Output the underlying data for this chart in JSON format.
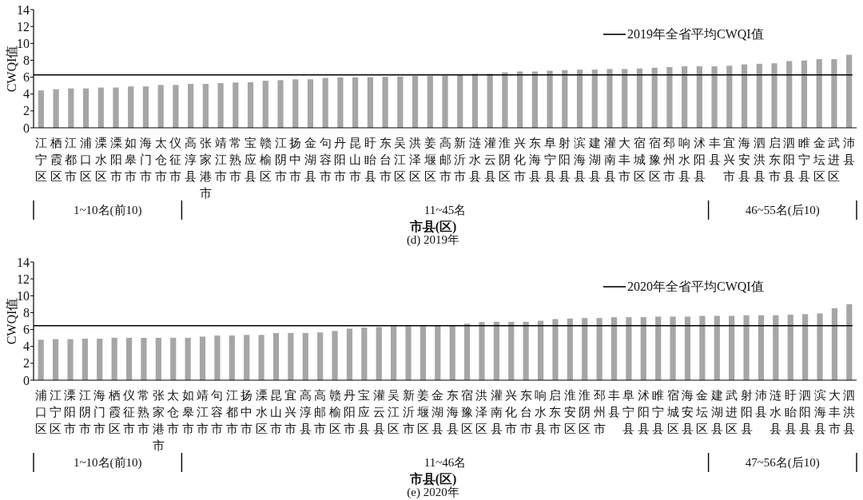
{
  "chart_data": [
    {
      "type": "bar",
      "ylabel": "CWQI值",
      "xlabel": "市县(区)",
      "color": "#a6a6a6",
      "ylim": [
        0,
        14
      ],
      "yticks": [
        0,
        2,
        4,
        6,
        8,
        10,
        12,
        14
      ],
      "legend": "top right",
      "categories": [
        "江宁区",
        "栖霞区",
        "江都市",
        "浦口区",
        "溧水区",
        "溧阳市",
        "如皋市",
        "海门市",
        "太仓市",
        "仪征市",
        "高淳县",
        "张家港市",
        "靖江市",
        "常熟市",
        "宝应县",
        "赣榆区",
        "江阴市",
        "扬中市",
        "金湖县",
        "句容市",
        "丹阳市",
        "昆山市",
        "盱眙县",
        "东台市",
        "吴江区",
        "洪泽区",
        "姜堰区",
        "高邮市",
        "新沂市",
        "涟水县",
        "灌云县",
        "淮阴区",
        "兴化市",
        "东海县",
        "阜宁县",
        "射阳县",
        "滨海县",
        "建湖县",
        "灌南县",
        "大丰市",
        "宿城区",
        "宿豫区",
        "邳州市",
        "响水县",
        "沭阳县",
        "丰县",
        "宜兴市",
        "海安县",
        "泗洪县",
        "启东市",
        "泗阳县",
        "睢宁县",
        "金坛区",
        "武进区",
        "沛县"
      ],
      "values": [
        4.43,
        4.56,
        4.66,
        4.66,
        4.77,
        4.77,
        4.9,
        4.9,
        5.07,
        5.07,
        5.2,
        5.2,
        5.3,
        5.37,
        5.4,
        5.57,
        5.64,
        5.74,
        5.74,
        5.9,
        5.97,
        5.97,
        6.0,
        6.04,
        6.07,
        6.14,
        6.14,
        6.18,
        6.24,
        6.4,
        6.4,
        6.57,
        6.67,
        6.67,
        6.76,
        6.83,
        6.89,
        6.89,
        6.96,
        6.96,
        7.02,
        7.12,
        7.19,
        7.28,
        7.28,
        7.28,
        7.35,
        7.51,
        7.58,
        7.64,
        7.9,
        7.97,
        8.13,
        8.13,
        8.65
      ],
      "ref_lines": [
        {
          "axis": "y",
          "value": 6.27,
          "label": "2019年全省平均CWQI值",
          "color": "#000000"
        }
      ],
      "annotations": [
        "1~10名(前10)",
        "11~45名",
        "46~55名(后10)",
        "(d) 2019年"
      ]
    },
    {
      "type": "bar",
      "ylabel": "CWQI值",
      "xlabel": "市县(区)",
      "color": "#a6a6a6",
      "ylim": [
        0,
        14
      ],
      "yticks": [
        0,
        2,
        4,
        6,
        8,
        10,
        12,
        14
      ],
      "legend": "top right",
      "categories": [
        "浦口区",
        "江宁区",
        "溧阳市",
        "江阴市",
        "海门市",
        "栖霞区",
        "仪征市",
        "常熟市",
        "张家港市",
        "太仓市",
        "如皋市",
        "靖江市",
        "句容市",
        "江都市",
        "扬中市",
        "溧水区",
        "昆山市",
        "宜兴市",
        "高淳县",
        "高邮市",
        "赣榆区",
        "丹阳市",
        "宝应县",
        "灌云县",
        "吴江区",
        "新沂市",
        "姜堰区",
        "金湖县",
        "东海县",
        "宿豫区",
        "洪泽区",
        "灌南县",
        "兴化市",
        "东台市",
        "响水县",
        "启东市",
        "淮安区",
        "淮阴区",
        "邳州市",
        "丰县",
        "阜宁县",
        "沭阳县",
        "睢宁县",
        "宿城区",
        "海安县",
        "金坛区",
        "建湖县",
        "武进区",
        "射阳县",
        "沛县",
        "涟水县",
        "盱眙县",
        "泗阳县",
        "滨海县",
        "大丰市",
        "泗洪县"
      ],
      "values": [
        4.79,
        4.86,
        4.86,
        4.92,
        4.92,
        5.02,
        5.02,
        5.02,
        5.02,
        5.02,
        5.02,
        5.16,
        5.29,
        5.29,
        5.36,
        5.36,
        5.59,
        5.59,
        5.59,
        5.66,
        5.83,
        6.1,
        6.23,
        6.3,
        6.4,
        6.4,
        6.4,
        6.45,
        6.49,
        6.69,
        6.88,
        6.91,
        6.91,
        6.91,
        7.04,
        7.24,
        7.3,
        7.36,
        7.36,
        7.46,
        7.46,
        7.46,
        7.53,
        7.53,
        7.53,
        7.62,
        7.62,
        7.62,
        7.69,
        7.69,
        7.69,
        7.75,
        7.82,
        7.91,
        8.53,
        9.01
      ],
      "ref_lines": [
        {
          "axis": "y",
          "value": 6.46,
          "label": "2020年全省平均CWQI值",
          "color": "#000000"
        }
      ],
      "annotations": [
        "1~10名(前10)",
        "11~46名",
        "47~56名(后10)",
        "(e) 2020年"
      ]
    }
  ]
}
